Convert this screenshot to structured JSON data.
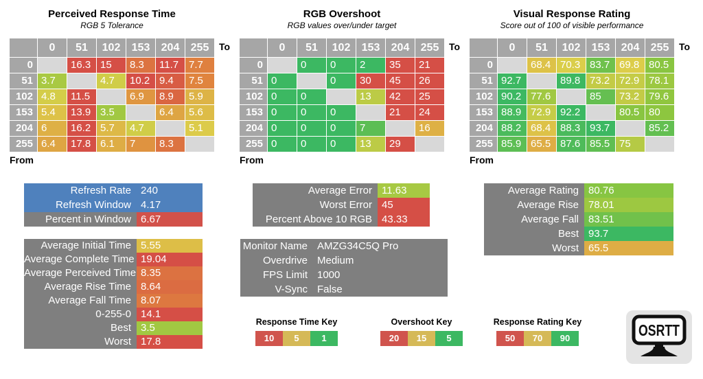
{
  "chart_data": [
    {
      "type": "heatmap",
      "title": "Perceived Response Time",
      "subtitle": "RGB 5 Tolerance",
      "x_axis_label": "To",
      "y_axis_label": "From",
      "x": [
        "0",
        "51",
        "102",
        "153",
        "204",
        "255"
      ],
      "y": [
        "0",
        "51",
        "102",
        "153",
        "204",
        "255"
      ],
      "values": [
        [
          null,
          "16.3",
          "15",
          "8.3",
          "11.7",
          "7.7"
        ],
        [
          "3.7",
          null,
          "4.7",
          "10.2",
          "9.4",
          "7.5"
        ],
        [
          "4.8",
          "11.5",
          null,
          "6.9",
          "8.9",
          "5.9"
        ],
        [
          "5.4",
          "13.9",
          "3.5",
          null,
          "6.4",
          "5.6"
        ],
        [
          "6",
          "16.2",
          "5.7",
          "4.7",
          null,
          "5.1"
        ],
        [
          "6.4",
          "17.8",
          "6.1",
          "7",
          "8.3",
          null
        ]
      ],
      "legend": {
        "title": "Response Time Key",
        "thresholds": [
          "10",
          "5",
          "1"
        ]
      }
    },
    {
      "type": "heatmap",
      "title": "RGB Overshoot",
      "subtitle": "RGB values over/under target",
      "x_axis_label": "To",
      "y_axis_label": "From",
      "x": [
        "0",
        "51",
        "102",
        "153",
        "204",
        "255"
      ],
      "y": [
        "0",
        "51",
        "102",
        "153",
        "204",
        "255"
      ],
      "values": [
        [
          null,
          "0",
          "0",
          "2",
          "35",
          "21"
        ],
        [
          "0",
          null,
          "0",
          "30",
          "45",
          "26"
        ],
        [
          "0",
          "0",
          null,
          "13",
          "42",
          "25"
        ],
        [
          "0",
          "0",
          "0",
          null,
          "21",
          "24"
        ],
        [
          "0",
          "0",
          "0",
          "7",
          null,
          "16"
        ],
        [
          "0",
          "0",
          "0",
          "13",
          "29",
          null
        ]
      ],
      "legend": {
        "title": "Overshoot Key",
        "thresholds": [
          "20",
          "15",
          "5"
        ]
      }
    },
    {
      "type": "heatmap",
      "title": "Visual Response Rating",
      "subtitle": "Score out of 100 of visible performance",
      "x_axis_label": "To",
      "y_axis_label": "From",
      "x": [
        "0",
        "51",
        "102",
        "153",
        "204",
        "255"
      ],
      "y": [
        "0",
        "51",
        "102",
        "153",
        "204",
        "255"
      ],
      "values": [
        [
          null,
          "68.4",
          "70.3",
          "83.7",
          "69.8",
          "80.5"
        ],
        [
          "92.7",
          null,
          "89.8",
          "73.2",
          "72.9",
          "78.1"
        ],
        [
          "90.2",
          "77.6",
          null,
          "85",
          "73.2",
          "79.6"
        ],
        [
          "88.9",
          "72.9",
          "92.2",
          null,
          "80.5",
          "80"
        ],
        [
          "88.2",
          "68.4",
          "88.3",
          "93.7",
          null,
          "85.2"
        ],
        [
          "85.9",
          "65.5",
          "87.6",
          "85.5",
          "75",
          null
        ]
      ],
      "legend": {
        "title": "Response Rating Key",
        "thresholds": [
          "50",
          "70",
          "90"
        ]
      }
    }
  ],
  "summary_boxes": [
    {
      "name": "refresh-stats",
      "rows": [
        {
          "label": "Refresh Rate",
          "value": "240",
          "color": "blue"
        },
        {
          "label": "Refresh Window",
          "value": "4.17",
          "color": "blue"
        },
        {
          "label": "Percent in Window",
          "value": "6.67",
          "color": "red"
        }
      ]
    },
    {
      "name": "response-time-stats",
      "scale": 0,
      "rows": [
        {
          "label": "Average Initial Time",
          "value": "5.55"
        },
        {
          "label": "Average Complete Time",
          "value": "19.04"
        },
        {
          "label": "Average Perceived Time",
          "value": "8.35"
        },
        {
          "label": "Average Rise Time",
          "value": "8.64"
        },
        {
          "label": "Average Fall Time",
          "value": "8.07"
        },
        {
          "label": "0-255-0",
          "value": "14.1"
        },
        {
          "label": "Best",
          "value": "3.5"
        },
        {
          "label": "Worst",
          "value": "17.8"
        }
      ]
    },
    {
      "name": "overshoot-stats",
      "scale": 1,
      "rows": [
        {
          "label": "Average Error",
          "value": "11.63"
        },
        {
          "label": "Worst Error",
          "value": "45"
        },
        {
          "label": "Percent Above 10 RGB",
          "value": "43.33"
        }
      ]
    },
    {
      "name": "monitor-info",
      "plain": true,
      "rows": [
        {
          "label": "Monitor Name",
          "value": "AMZG34C5Q Pro"
        },
        {
          "label": "Overdrive",
          "value": "Medium"
        },
        {
          "label": "FPS Limit",
          "value": "1000"
        },
        {
          "label": "V-Sync",
          "value": "False"
        }
      ]
    },
    {
      "name": "rating-stats",
      "scale": 2,
      "rows": [
        {
          "label": "Average Rating",
          "value": "80.76"
        },
        {
          "label": "Average Rise",
          "value": "78.01"
        },
        {
          "label": "Average Fall",
          "value": "83.51"
        },
        {
          "label": "Best",
          "value": "93.7"
        },
        {
          "label": "Worst",
          "value": "65.5"
        }
      ]
    }
  ],
  "logo": {
    "text": "OSRTT"
  },
  "colors": {
    "red": "#d2514a",
    "gold": "#d5b957",
    "green": "#3cb862",
    "blue": "#4f81bd",
    "header_gray": "#a6a6a6",
    "diagonal_gray": "#d8d8d8",
    "box_gray": "#7f7f7f",
    "key_swatches": [
      "#d0544d",
      "#d5b957",
      "#3cb862"
    ]
  }
}
